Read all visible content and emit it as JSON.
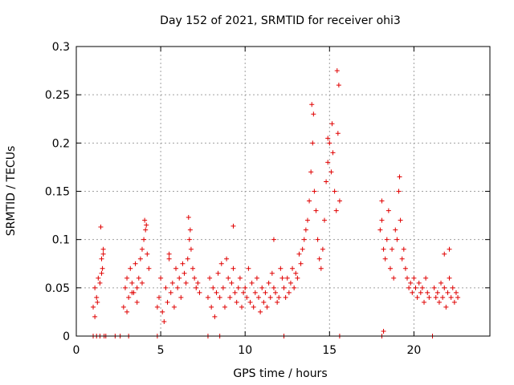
{
  "chart_data": {
    "type": "scatter",
    "title": "Day 152 of 2021, SRMTID for receiver ohi3",
    "xlabel": "GPS time / hours",
    "ylabel": "SRMTID / TECUs",
    "xlim": [
      0,
      24.5
    ],
    "ylim": [
      0,
      0.3
    ],
    "xticks": [
      "0",
      "5",
      "10",
      "15",
      "20"
    ],
    "xtick_values": [
      0,
      5,
      10,
      15,
      20
    ],
    "yticks": [
      "0",
      "0.05",
      "0.1",
      "0.15",
      "0.2",
      "0.25",
      "0.3"
    ],
    "ytick_values": [
      0,
      0.05,
      0.1,
      0.15,
      0.2,
      0.25,
      0.3
    ],
    "grid": true,
    "marker": "+",
    "color": "#e00000",
    "series": [
      {
        "name": "SRMTID",
        "x": [
          1.0,
          1.1,
          1.2,
          1.3,
          1.4,
          1.5,
          1.55,
          1.6,
          1.1,
          1.25,
          1.45,
          1.5,
          1.6,
          2.8,
          2.9,
          3.0,
          3.1,
          3.2,
          3.3,
          3.4,
          3.5,
          3.6,
          3.7,
          3.8,
          3.9,
          4.0,
          4.05,
          4.1,
          4.2,
          4.3,
          3.0,
          3.3,
          3.6,
          3.9,
          4.15,
          4.8,
          4.9,
          5.0,
          5.1,
          5.2,
          5.3,
          5.4,
          5.5,
          5.6,
          5.7,
          5.8,
          5.9,
          6.0,
          6.1,
          6.2,
          6.3,
          6.4,
          6.5,
          6.6,
          6.7,
          6.8,
          6.9,
          7.0,
          7.1,
          7.2,
          7.3,
          5.5,
          6.65,
          6.75,
          7.8,
          7.9,
          8.0,
          8.1,
          8.2,
          8.3,
          8.4,
          8.5,
          8.6,
          8.7,
          8.8,
          8.9,
          9.0,
          9.1,
          9.2,
          9.3,
          9.4,
          9.5,
          9.6,
          9.7,
          9.8,
          9.9,
          10.0,
          10.1,
          10.2,
          10.3,
          10.4,
          10.5,
          10.6,
          10.7,
          10.8,
          10.9,
          11.0,
          11.1,
          11.2,
          11.3,
          11.4,
          11.5,
          11.6,
          11.7,
          11.8,
          11.9,
          12.0,
          12.1,
          12.2,
          12.3,
          9.3,
          11.7,
          12.4,
          12.5,
          12.6,
          12.7,
          12.8,
          12.9,
          13.0,
          13.1,
          13.2,
          13.3,
          13.4,
          13.5,
          13.6,
          13.7,
          13.8,
          13.9,
          14.0,
          14.1,
          14.2,
          14.3,
          14.4,
          14.5,
          14.6,
          14.7,
          14.8,
          14.9,
          15.0,
          15.1,
          15.2,
          15.3,
          15.4,
          15.5,
          15.6,
          13.95,
          14.05,
          15.45,
          15.55,
          14.9,
          15.15,
          18.0,
          18.1,
          18.2,
          18.3,
          18.4,
          18.5,
          18.6,
          18.7,
          18.8,
          18.9,
          19.0,
          19.1,
          19.2,
          19.3,
          19.4,
          19.5,
          19.6,
          19.7,
          19.8,
          19.9,
          20.0,
          20.1,
          20.2,
          20.3,
          20.4,
          20.5,
          20.6,
          20.7,
          20.8,
          20.9,
          19.15,
          18.1,
          21.2,
          21.3,
          21.4,
          21.5,
          21.6,
          21.7,
          21.8,
          21.9,
          22.0,
          22.1,
          22.2,
          22.3,
          22.4,
          22.5,
          22.6,
          21.8,
          22.1,
          1.0,
          1.2,
          1.4,
          1.65,
          1.75,
          2.3,
          2.6,
          3.1,
          4.8,
          7.8,
          8.5,
          12.3,
          15.6,
          18.1,
          18.2,
          21.1
        ],
        "y": [
          0.03,
          0.05,
          0.04,
          0.06,
          0.055,
          0.08,
          0.07,
          0.09,
          0.02,
          0.035,
          0.113,
          0.065,
          0.085,
          0.03,
          0.05,
          0.06,
          0.04,
          0.07,
          0.055,
          0.045,
          0.075,
          0.05,
          0.06,
          0.08,
          0.09,
          0.1,
          0.12,
          0.11,
          0.085,
          0.07,
          0.025,
          0.045,
          0.035,
          0.055,
          0.115,
          0.03,
          0.04,
          0.06,
          0.025,
          0.015,
          0.05,
          0.035,
          0.08,
          0.045,
          0.055,
          0.03,
          0.07,
          0.05,
          0.06,
          0.04,
          0.075,
          0.065,
          0.055,
          0.08,
          0.1,
          0.09,
          0.07,
          0.06,
          0.05,
          0.055,
          0.045,
          0.085,
          0.123,
          0.11,
          0.04,
          0.06,
          0.03,
          0.05,
          0.02,
          0.045,
          0.065,
          0.04,
          0.075,
          0.05,
          0.03,
          0.08,
          0.06,
          0.04,
          0.055,
          0.07,
          0.045,
          0.035,
          0.05,
          0.06,
          0.03,
          0.045,
          0.05,
          0.04,
          0.07,
          0.035,
          0.055,
          0.03,
          0.045,
          0.06,
          0.04,
          0.025,
          0.05,
          0.035,
          0.045,
          0.03,
          0.055,
          0.04,
          0.065,
          0.05,
          0.045,
          0.035,
          0.04,
          0.07,
          0.06,
          0.05,
          0.114,
          0.1,
          0.04,
          0.06,
          0.045,
          0.055,
          0.07,
          0.05,
          0.065,
          0.06,
          0.085,
          0.075,
          0.09,
          0.1,
          0.11,
          0.12,
          0.14,
          0.17,
          0.2,
          0.15,
          0.13,
          0.1,
          0.08,
          0.07,
          0.09,
          0.12,
          0.16,
          0.18,
          0.2,
          0.17,
          0.19,
          0.15,
          0.13,
          0.21,
          0.14,
          0.24,
          0.23,
          0.275,
          0.26,
          0.205,
          0.22,
          0.11,
          0.12,
          0.09,
          0.08,
          0.1,
          0.13,
          0.07,
          0.09,
          0.06,
          0.11,
          0.1,
          0.15,
          0.12,
          0.08,
          0.09,
          0.07,
          0.06,
          0.05,
          0.055,
          0.045,
          0.06,
          0.05,
          0.04,
          0.055,
          0.045,
          0.05,
          0.035,
          0.06,
          0.045,
          0.04,
          0.165,
          0.14,
          0.05,
          0.04,
          0.045,
          0.035,
          0.055,
          0.04,
          0.05,
          0.03,
          0.045,
          0.06,
          0.04,
          0.05,
          0.035,
          0.045,
          0.04,
          0.085,
          0.09,
          0.0,
          0.0,
          0.0,
          0.0,
          0.0,
          0.0,
          0.0,
          0.0,
          0.0,
          0.0,
          0.0,
          0.0,
          0.0,
          0.0,
          0.005,
          0.0
        ]
      }
    ]
  }
}
